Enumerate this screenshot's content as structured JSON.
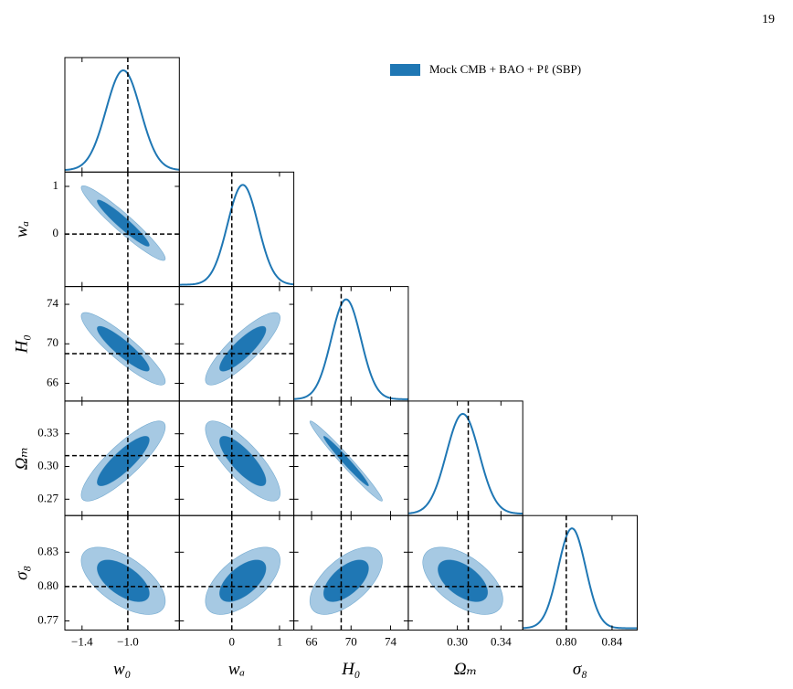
{
  "page_number": "19",
  "chart_data": {
    "type": "corner",
    "series": [
      {
        "name": "Mock CMB + BAO + Pℓ (SBP)",
        "color": "#1f77b4",
        "light_color": "#a6c9e3"
      }
    ],
    "parameters": [
      {
        "label": "w₀",
        "lim": [
          -1.55,
          -0.55
        ],
        "xticks": [
          {
            "value": -1.4,
            "label": "−1.4"
          },
          {
            "value": -1.0,
            "label": "−1.0"
          }
        ],
        "yticks": [],
        "truth": -1.0,
        "mean": -1.04,
        "sigma": 0.15
      },
      {
        "label": "wₐ",
        "lim": [
          -1.1,
          1.3
        ],
        "xticks": [
          0,
          1
        ],
        "yticks": [
          0,
          1
        ],
        "truth": 0,
        "mean": 0.23,
        "sigma": 0.32
      },
      {
        "label": "H₀",
        "lim": [
          64.2,
          75.8
        ],
        "xticks": [
          66,
          70,
          74
        ],
        "yticks": [
          66,
          70,
          74
        ],
        "truth": 69,
        "mean": 69.5,
        "sigma": 1.5
      },
      {
        "label": "Ωₘ",
        "lim": [
          0.255,
          0.36
        ],
        "xticks": [
          {
            "value": 0.3,
            "label": "0.30"
          },
          0.34
        ],
        "yticks": [
          0.27,
          {
            "value": 0.3,
            "label": "0.30"
          },
          0.33
        ],
        "truth": 0.31,
        "mean": 0.305,
        "sigma": 0.015
      },
      {
        "label": "σ₈",
        "lim": [
          0.762,
          0.862
        ],
        "xticks": [
          {
            "value": 0.8,
            "label": "0.80"
          },
          0.84
        ],
        "yticks": [
          0.77,
          {
            "value": 0.8,
            "label": "0.80"
          },
          0.83
        ],
        "truth": 0.8,
        "mean": 0.805,
        "sigma": 0.012
      }
    ],
    "correlations": [
      [],
      [
        -0.95
      ],
      [
        -0.9,
        0.85
      ],
      [
        0.85,
        -0.8,
        -0.98
      ],
      [
        -0.6,
        0.6,
        0.6,
        -0.55
      ]
    ]
  }
}
